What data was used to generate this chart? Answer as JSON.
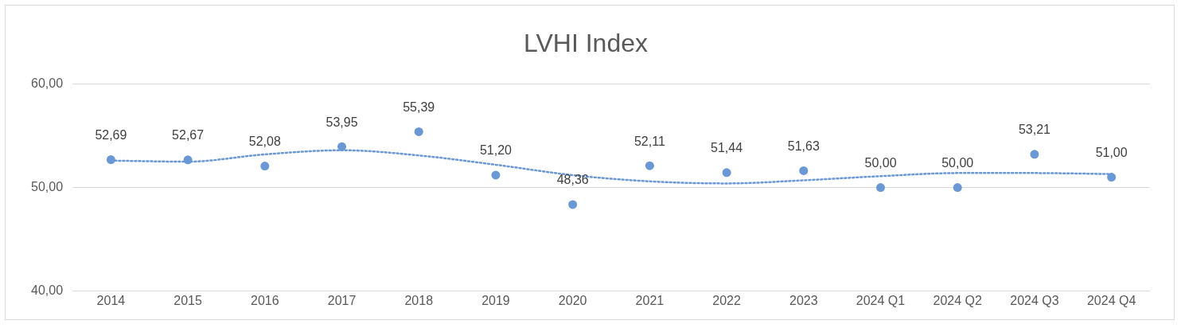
{
  "chart_data": {
    "type": "scatter",
    "title": "LVHI Index",
    "categories": [
      "2014",
      "2015",
      "2016",
      "2017",
      "2018",
      "2019",
      "2020",
      "2021",
      "2022",
      "2023",
      "2024 Q1",
      "2024 Q2",
      "2024 Q3",
      "2024 Q4"
    ],
    "series": [
      {
        "color": "#6a98d4",
        "marker": "circle",
        "values": [
          52.69,
          52.67,
          52.08,
          53.95,
          55.39,
          51.2,
          48.36,
          52.11,
          51.44,
          51.63,
          50,
          50,
          53.21,
          51
        ],
        "value_labels": [
          "52,69",
          "52,67",
          "52,08",
          "53,95",
          "55,39",
          "51,20",
          "48,36",
          "52,11",
          "51,44",
          "51,63",
          "50,00",
          "50,00",
          "53,21",
          "51,00"
        ]
      },
      {
        "type": "line",
        "color": "#6a98d4",
        "marker": "none",
        "line_style": "dotted",
        "values": [
          52.6,
          52.5,
          53.2,
          53.6,
          53.1,
          52.2,
          51.2,
          50.6,
          50.4,
          50.7,
          51.1,
          51.4,
          51.4,
          51.3
        ]
      }
    ],
    "ylim": [
      40,
      60
    ],
    "yticks": [
      {
        "value": 40,
        "label": "40,00"
      },
      {
        "value": 50,
        "label": "50,00"
      },
      {
        "value": 60,
        "label": "60,00"
      }
    ],
    "grid": "y",
    "legend": false
  }
}
